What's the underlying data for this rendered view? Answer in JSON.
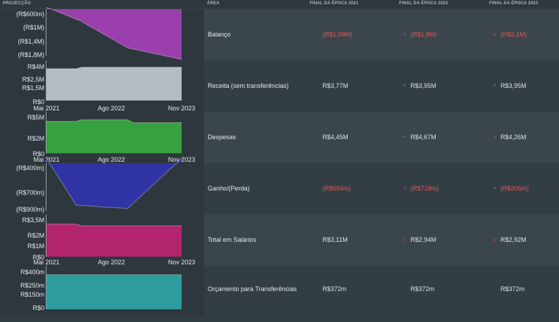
{
  "header": {
    "projection": "PROJECÇÃO",
    "area": "ÁREA",
    "col1": "FINAL DA ÉPOCA 2021",
    "col2": "FINAL DA ÉPOCA 2022",
    "col3": "FINAL DA ÉPOCA 2023"
  },
  "rows": [
    {
      "area": "Balanço",
      "v1": "(R$1,08M)",
      "v2": "(R$1,8M)",
      "v3": "(R$2,1M)",
      "v1_tone": "neg",
      "v2_tone": "neg",
      "v3_tone": "neg",
      "v2_trend": "down",
      "v3_trend": "down"
    },
    {
      "area": "Receita (sem transferências)",
      "v1": "R$3,77M",
      "v2": "R$3,95M",
      "v3": "R$3,95M",
      "v1_tone": "pos",
      "v2_tone": "pos",
      "v3_tone": "pos",
      "v2_trend": "up",
      "v3_trend": "up"
    },
    {
      "area": "Despesas",
      "v1": "R$4,45M",
      "v2": "R$4,67M",
      "v3": "R$4,26M",
      "v1_tone": "pos",
      "v2_tone": "pos",
      "v3_tone": "pos",
      "v2_trend": "up",
      "v3_trend": "down"
    },
    {
      "area": "Ganho/(Perda)",
      "v1": "(R$684m)",
      "v2": "(R$718m)",
      "v3": "(R$305m)",
      "v1_tone": "neg",
      "v2_tone": "neg",
      "v3_tone": "neg",
      "v2_trend": "down",
      "v3_trend": "up"
    },
    {
      "area": "Total em Salários",
      "v1": "R$3,11M",
      "v2": "R$2,94M",
      "v3": "R$2,92M",
      "v1_tone": "pos",
      "v2_tone": "pos",
      "v3_tone": "pos",
      "v2_trend": "down",
      "v3_trend": "down"
    },
    {
      "area": "Orçamento para Transferências",
      "v1": "R$372m",
      "v2": "R$372m",
      "v3": "R$372m",
      "v1_tone": "pos",
      "v2_tone": "pos",
      "v3_tone": "pos",
      "v2_trend": "",
      "v3_trend": ""
    }
  ],
  "chart_data": [
    {
      "type": "area",
      "name": "Balanço",
      "color": "#9b3fae",
      "x": [
        0,
        0.25,
        0.6,
        1
      ],
      "values": [
        -0.55,
        -0.9,
        -1.6,
        -1.9
      ],
      "ylim": [
        -1.8,
        -0.6
      ],
      "yticks": [
        "(R$600m)",
        "(R$1M)",
        "(R$1,4M)",
        "(R$1,8M)"
      ],
      "xticks": []
    },
    {
      "type": "area",
      "name": "Receita",
      "color": "#b4bcc1",
      "x": [
        0,
        0.22,
        0.26,
        1
      ],
      "values": [
        3.77,
        3.77,
        3.95,
        3.95
      ],
      "ylim": [
        0,
        4
      ],
      "yticks": [
        "R$4M",
        "R$2,5M",
        "R$1,5M",
        "R$0"
      ],
      "xticks": [
        "Mai 2021",
        "Ago 2022",
        "Nov 2023"
      ]
    },
    {
      "type": "area",
      "name": "Despesas",
      "color": "#37a03f",
      "x": [
        0,
        0.22,
        0.26,
        0.6,
        0.64,
        1
      ],
      "values": [
        4.45,
        4.45,
        4.67,
        4.67,
        4.26,
        4.26
      ],
      "ylim": [
        0,
        5
      ],
      "yticks": [
        "R$5M",
        "R$2M",
        "R$0"
      ],
      "xticks": [
        "Mai 2021",
        "Ago 2022",
        "Nov 2023"
      ]
    },
    {
      "type": "area",
      "name": "Ganho/(Perda)",
      "color": "#2f33a3",
      "x": [
        0,
        0.22,
        0.6,
        1
      ],
      "values": [
        -350,
        -840,
        -875,
        -350
      ],
      "ylim": [
        -900,
        -400
      ],
      "yticks": [
        "(R$400m)",
        "(R$700m)",
        "(R$900m)"
      ],
      "xticks": []
    },
    {
      "type": "area",
      "name": "Total em Salários",
      "color": "#b3246f",
      "x": [
        0,
        0.22,
        0.26,
        1
      ],
      "values": [
        3.11,
        3.11,
        2.94,
        2.94
      ],
      "ylim": [
        0,
        3.5
      ],
      "yticks": [
        "R$3,5M",
        "R$2M",
        "R$1M",
        "R$0"
      ],
      "xticks": [
        "Mai 2021",
        "Ago 2022",
        "Nov 2023"
      ]
    },
    {
      "type": "area",
      "name": "Orçamento para Transferências",
      "color": "#2e9b9c",
      "x": [
        0,
        1
      ],
      "values": [
        372,
        372
      ],
      "ylim": [
        0,
        400
      ],
      "yticks": [
        "R$400m",
        "R$250m",
        "R$150m",
        "R$0"
      ],
      "xticks": []
    }
  ]
}
